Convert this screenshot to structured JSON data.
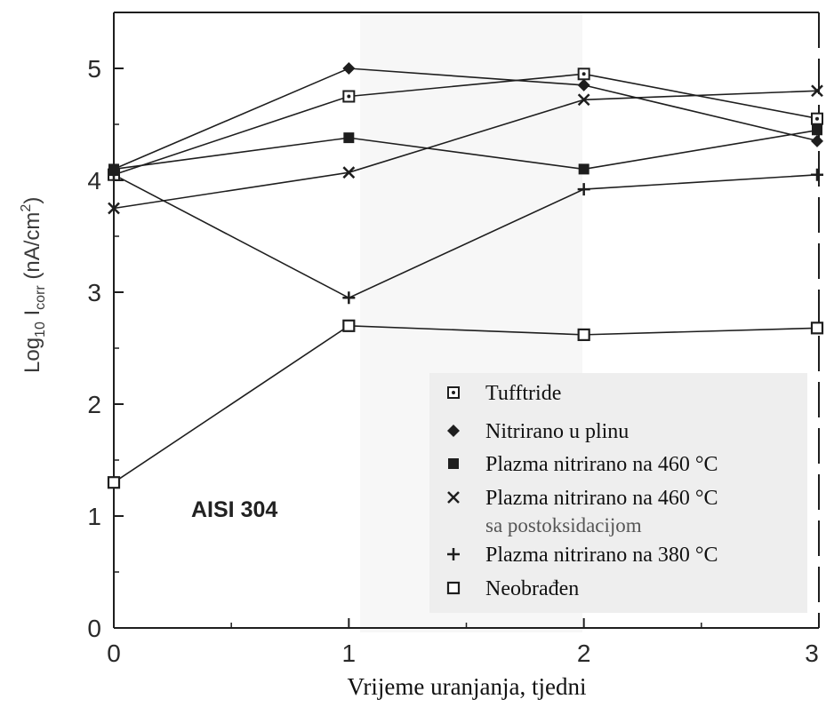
{
  "chart_data": {
    "type": "line",
    "xlabel": "Vrijeme uranjanja, tjedni",
    "ylabel_main": "Log",
    "ylabel_sub1": "10",
    "ylabel_mid": " I",
    "ylabel_sub2": "corr",
    "ylabel_unit": " (nA/cm",
    "ylabel_sup": "2",
    "ylabel_close": ")",
    "xlim": [
      0,
      3
    ],
    "ylim": [
      0,
      5.5
    ],
    "xticks": [
      0,
      1,
      2,
      3
    ],
    "yticks": [
      0,
      1,
      2,
      3,
      4,
      5
    ],
    "annotation": "AISI 304",
    "legend_position": "bottom-right",
    "grid": false,
    "series": [
      {
        "name": "Tufftride",
        "marker": "square-dot",
        "x": [
          0,
          1,
          2,
          3
        ],
        "y": [
          4.05,
          4.75,
          4.95,
          4.55
        ]
      },
      {
        "name": "Nitrirano u plinu",
        "marker": "diamond",
        "x": [
          0,
          1,
          2,
          3
        ],
        "y": [
          4.1,
          5.0,
          4.85,
          4.35
        ]
      },
      {
        "name": "Plazma nitrirano na 460 °C",
        "marker": "filled-square",
        "x": [
          0,
          1,
          2,
          3
        ],
        "y": [
          4.1,
          4.38,
          4.1,
          4.45
        ]
      },
      {
        "name": "Plazma nitrirano na 460 °C",
        "name_line2": "sa postoksidacijom",
        "marker": "x",
        "x": [
          0,
          1,
          2,
          3
        ],
        "y": [
          3.75,
          4.07,
          4.72,
          4.8
        ]
      },
      {
        "name": "Plazma nitrirano na 380 °C",
        "marker": "plus",
        "x": [
          0,
          1,
          2,
          3
        ],
        "y": [
          4.05,
          2.95,
          3.92,
          4.05
        ]
      },
      {
        "name": "Neobrađen",
        "marker": "open-square",
        "x": [
          0,
          1,
          2,
          3
        ],
        "y": [
          1.3,
          2.7,
          2.62,
          2.68
        ]
      }
    ]
  }
}
